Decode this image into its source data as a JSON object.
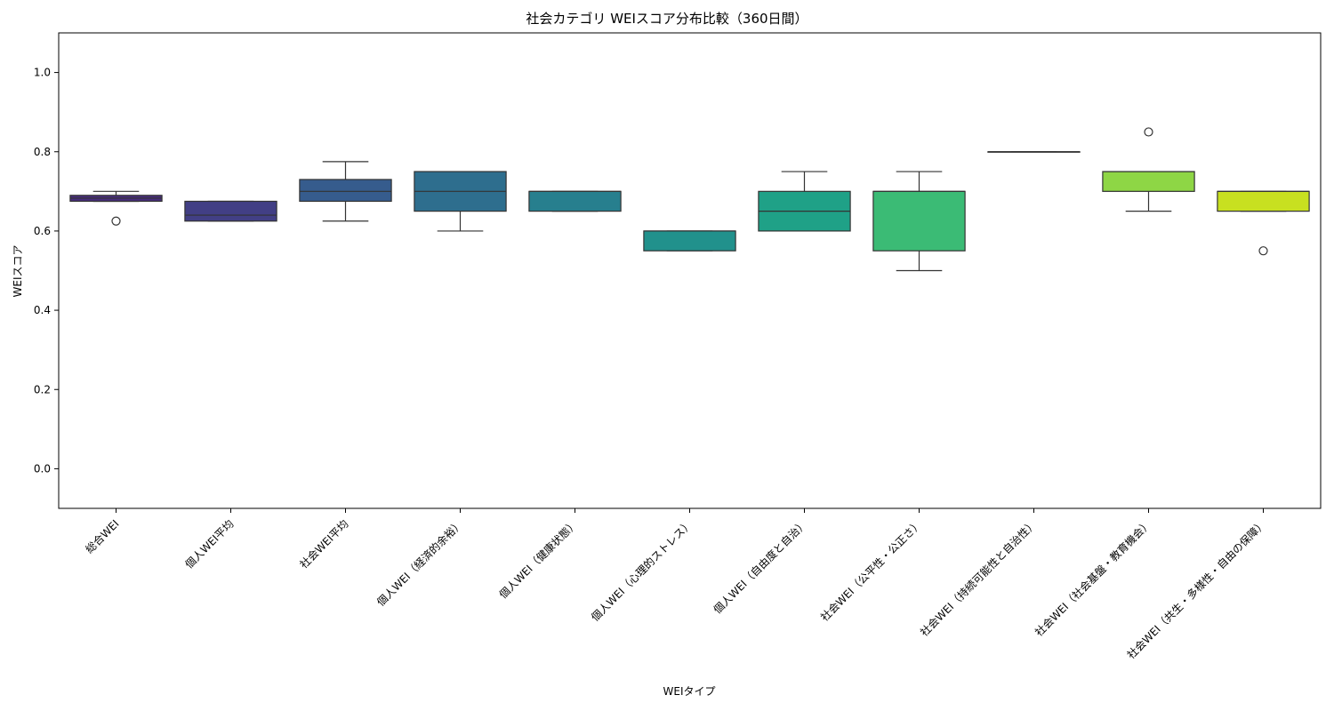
{
  "chart_data": {
    "type": "box",
    "title": "社会カテゴリ WEIスコア分布比較（360日間）",
    "xlabel": "WEIタイプ",
    "ylabel": "WEIスコア",
    "ylim": [
      -0.1,
      1.1
    ],
    "yticks": [
      0.0,
      0.2,
      0.4,
      0.6,
      0.8,
      1.0
    ],
    "ytick_labels": [
      "0.0",
      "0.2",
      "0.4",
      "0.6",
      "0.8",
      "1.0"
    ],
    "grid": false,
    "legend": "none",
    "categories": [
      "総合WEI",
      "個人WEI平均",
      "社会WEI平均",
      "個人WEI（経済的余裕）",
      "個人WEI（健康状態）",
      "個人WEI（心理的ストレス）",
      "個人WEI（自由度と自治）",
      "社会WEI（公平性・公正さ）",
      "社会WEI（持続可能性と自治性）",
      "社会WEI（社会基盤・教育機会）",
      "社会WEI（共生・多様性・自由の保障）"
    ],
    "boxes": [
      {
        "whisker_low": 0.675,
        "q1": 0.675,
        "median": 0.683,
        "q3": 0.69,
        "whisker_high": 0.7,
        "outliers": [
          0.625
        ]
      },
      {
        "whisker_low": 0.625,
        "q1": 0.625,
        "median": 0.64,
        "q3": 0.675,
        "whisker_high": 0.675,
        "outliers": []
      },
      {
        "whisker_low": 0.625,
        "q1": 0.675,
        "median": 0.7,
        "q3": 0.73,
        "whisker_high": 0.775,
        "outliers": []
      },
      {
        "whisker_low": 0.6,
        "q1": 0.65,
        "median": 0.7,
        "q3": 0.75,
        "whisker_high": 0.75,
        "outliers": []
      },
      {
        "whisker_low": 0.65,
        "q1": 0.65,
        "median": 0.7,
        "q3": 0.7,
        "whisker_high": 0.7,
        "outliers": []
      },
      {
        "whisker_low": 0.55,
        "q1": 0.55,
        "median": 0.6,
        "q3": 0.6,
        "whisker_high": 0.6,
        "outliers": []
      },
      {
        "whisker_low": 0.6,
        "q1": 0.6,
        "median": 0.65,
        "q3": 0.7,
        "whisker_high": 0.75,
        "outliers": []
      },
      {
        "whisker_low": 0.5,
        "q1": 0.55,
        "median": 0.7,
        "q3": 0.7,
        "whisker_high": 0.75,
        "outliers": []
      },
      {
        "whisker_low": 0.8,
        "q1": 0.8,
        "median": 0.8,
        "q3": 0.8,
        "whisker_high": 0.8,
        "outliers": []
      },
      {
        "whisker_low": 0.65,
        "q1": 0.7,
        "median": 0.75,
        "q3": 0.75,
        "whisker_high": 0.75,
        "outliers": [
          0.85
        ]
      },
      {
        "whisker_low": 0.65,
        "q1": 0.65,
        "median": 0.7,
        "q3": 0.7,
        "whisker_high": 0.7,
        "outliers": [
          0.55
        ]
      }
    ],
    "colors": [
      "#472d7b",
      "#423f85",
      "#365c8d",
      "#2e6e8e",
      "#277f8e",
      "#21918c",
      "#1fa187",
      "#3bbb75",
      "#5ec962",
      "#8ed645",
      "#c8e020"
    ]
  }
}
